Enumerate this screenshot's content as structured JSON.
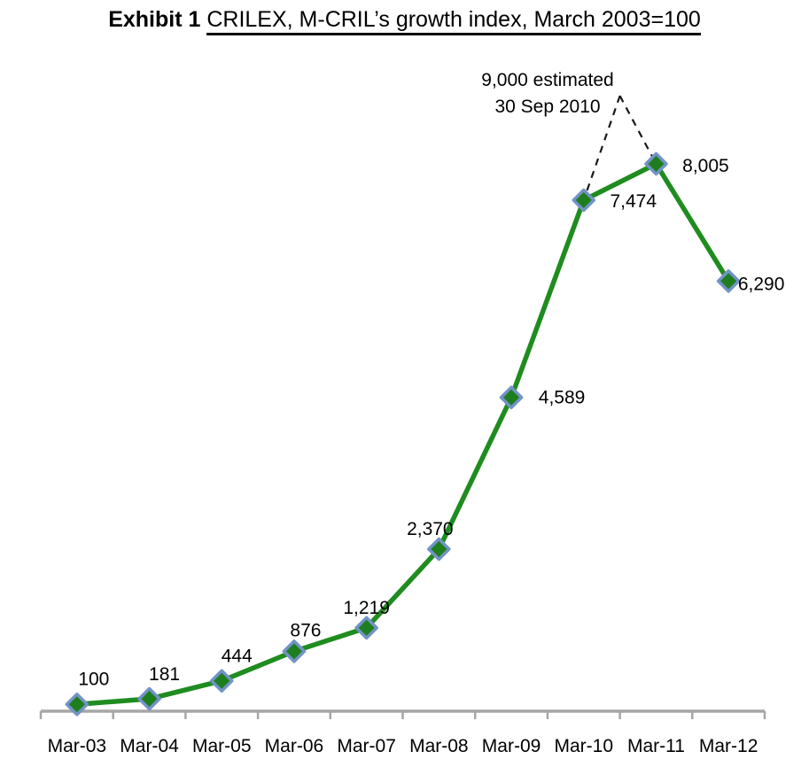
{
  "title": {
    "exhibit": "Exhibit 1",
    "text": "CRILEX, M-CRIL’s growth index, March 2003=100"
  },
  "chart_data": {
    "type": "line",
    "title": "Exhibit 1 CRILEX, M-CRIL’s growth index, March 2003=100",
    "categories": [
      "Mar-03",
      "Mar-04",
      "Mar-05",
      "Mar-06",
      "Mar-07",
      "Mar-08",
      "Mar-09",
      "Mar-10",
      "Mar-11",
      "Mar-12"
    ],
    "series": [
      {
        "name": "CRILEX growth index",
        "values": [
          100,
          181,
          444,
          876,
          1219,
          2370,
          4589,
          7474,
          8005,
          6290
        ]
      }
    ],
    "data_labels": [
      "100",
      "181",
      "444",
      "876",
      "1,219",
      "2,370",
      "4,589",
      "7,474",
      "8,005",
      "6,290"
    ],
    "xlabel": "",
    "ylabel": "",
    "ylim": [
      0,
      10000
    ],
    "grid": false,
    "legend_position": "none",
    "annotation": {
      "line1": "9,000 estimated",
      "line2": "30 Sep 2010",
      "value": 9000,
      "between_categories": [
        "Mar-10",
        "Mar-11"
      ],
      "connector_style": "dashed"
    },
    "colors": {
      "line": "#1f8c1f",
      "marker_fill": "#1e7e1e",
      "marker_border": "#7293c6",
      "axis": "#a6a6a6",
      "text": "#000000",
      "annotation_line": "#1a1a1a"
    }
  }
}
